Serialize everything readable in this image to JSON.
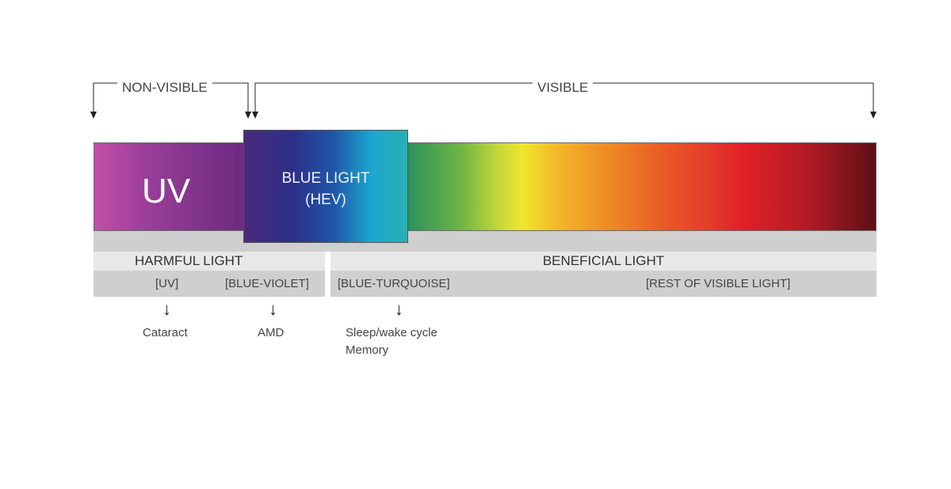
{
  "brackets": {
    "non_visible": "NON-VISIBLE",
    "visible": "VISIBLE"
  },
  "spectrum": {
    "uv_label": "UV",
    "blue_light_line1": "BLUE LIGHT",
    "blue_light_line2": "(HEV)"
  },
  "categories": {
    "harmful": "HARMFUL LIGHT",
    "beneficial": "BENEFICIAL LIGHT"
  },
  "subcategories": [
    "[UV]",
    "[BLUE-VIOLET]",
    "[BLUE-TURQUOISE]",
    "[REST OF VISIBLE LIGHT]"
  ],
  "effects": {
    "uv": "Cataract",
    "blue_violet": "AMD",
    "blue_turquoise_1": "Sleep/wake cycle",
    "blue_turquoise_2": "Memory"
  },
  "arrow_glyph": "↓",
  "colors": {
    "uv": "#9a3e9a",
    "blue": "#1f57a8",
    "green": "#2a8f5e",
    "yellow": "#efe62b",
    "red": "#e11f27",
    "dark_red": "#5e0f16"
  }
}
